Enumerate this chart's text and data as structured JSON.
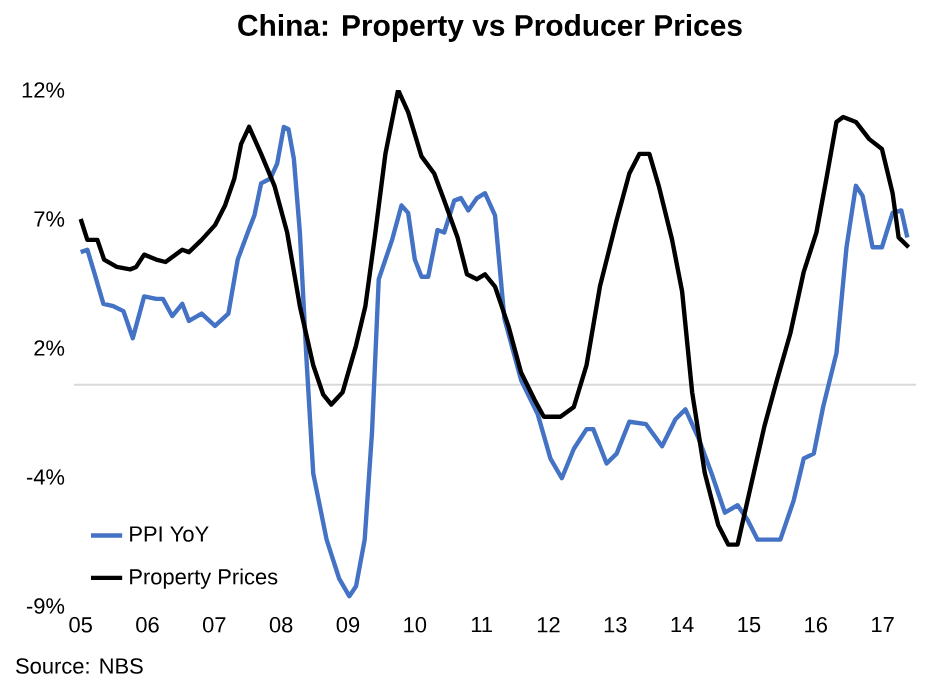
{
  "chart_data": {
    "type": "line",
    "title": "China: Property vs Producer Prices",
    "xlim": [
      2004.9,
      2017.5
    ],
    "ylim": [
      -9,
      12
    ],
    "xticks": [
      {
        "value": 2005,
        "label": "05"
      },
      {
        "value": 2006,
        "label": "06"
      },
      {
        "value": 2007,
        "label": "07"
      },
      {
        "value": 2008,
        "label": "08"
      },
      {
        "value": 2009,
        "label": "09"
      },
      {
        "value": 2010,
        "label": "10"
      },
      {
        "value": 2011,
        "label": "11"
      },
      {
        "value": 2012,
        "label": "12"
      },
      {
        "value": 2013,
        "label": "13"
      },
      {
        "value": 2014,
        "label": "14"
      },
      {
        "value": 2015,
        "label": "15"
      },
      {
        "value": 2016,
        "label": "16"
      },
      {
        "value": 2017,
        "label": "17"
      }
    ],
    "yticks": [
      {
        "value": 12,
        "label": "12%"
      },
      {
        "value": 6.75,
        "label": "7%"
      },
      {
        "value": 1.5,
        "label": "2%"
      },
      {
        "value": -3.75,
        "label": "-4%"
      },
      {
        "value": -9,
        "label": "-9%"
      }
    ],
    "grid": false,
    "legend": "bottom left",
    "ref_lines": [
      {
        "axis": "y",
        "value": 0,
        "color": "#d9d9d9"
      }
    ],
    "annotations": [
      "Source: NBS"
    ],
    "series": [
      {
        "name": "PPI YoY",
        "color": "#4472c4",
        "x": [
          2005.0,
          2005.1,
          2005.2,
          2005.34,
          2005.49,
          2005.64,
          2005.78,
          2005.95,
          2006.13,
          2006.23,
          2006.37,
          2006.52,
          2006.62,
          2006.81,
          2007.01,
          2007.21,
          2007.35,
          2007.5,
          2007.6,
          2007.7,
          2007.84,
          2007.94,
          2008.04,
          2008.11,
          2008.19,
          2008.28,
          2008.38,
          2008.48,
          2008.68,
          2008.87,
          2009.02,
          2009.12,
          2009.25,
          2009.36,
          2009.46,
          2009.66,
          2009.8,
          2009.9,
          2010.0,
          2010.1,
          2010.2,
          2010.34,
          2010.44,
          2010.59,
          2010.69,
          2010.8,
          2010.93,
          2011.05,
          2011.2,
          2011.34,
          2011.59,
          2011.84,
          2012.03,
          2012.2,
          2012.38,
          2012.57,
          2012.67,
          2012.87,
          2013.02,
          2013.21,
          2013.46,
          2013.7,
          2013.9,
          2014.05,
          2014.25,
          2014.44,
          2014.64,
          2014.83,
          2014.98,
          2015.13,
          2015.47,
          2015.67,
          2015.82,
          2015.97,
          2016.11,
          2016.31,
          2016.46,
          2016.6,
          2016.7,
          2016.85,
          2016.99,
          2017.15,
          2017.28,
          2017.37
        ],
        "values": [
          5.4,
          5.5,
          4.6,
          3.3,
          3.2,
          3.0,
          1.9,
          3.6,
          3.5,
          3.5,
          2.8,
          3.3,
          2.6,
          2.9,
          2.4,
          2.9,
          5.1,
          6.2,
          6.9,
          8.2,
          8.4,
          9.0,
          10.5,
          10.4,
          9.2,
          6.2,
          1.0,
          -3.6,
          -6.3,
          -7.9,
          -8.6,
          -8.2,
          -6.3,
          -1.9,
          4.3,
          5.9,
          7.3,
          7.0,
          5.1,
          4.4,
          4.4,
          6.3,
          6.2,
          7.5,
          7.6,
          7.1,
          7.6,
          7.8,
          6.9,
          2.7,
          0.2,
          -1.2,
          -3.0,
          -3.8,
          -2.6,
          -1.8,
          -1.8,
          -3.2,
          -2.8,
          -1.5,
          -1.6,
          -2.5,
          -1.4,
          -1.0,
          -2.2,
          -3.6,
          -5.2,
          -4.9,
          -5.5,
          -6.3,
          -6.3,
          -4.7,
          -3.0,
          -2.8,
          -0.9,
          1.3,
          5.6,
          8.1,
          7.7,
          5.6,
          5.6,
          7.0,
          7.1,
          6.0
        ]
      },
      {
        "name": "Property Prices",
        "color": "#000000",
        "x": [
          2005.0,
          2005.1,
          2005.25,
          2005.35,
          2005.54,
          2005.74,
          2005.83,
          2005.95,
          2006.13,
          2006.27,
          2006.52,
          2006.62,
          2006.81,
          2007.01,
          2007.16,
          2007.3,
          2007.4,
          2007.52,
          2007.7,
          2007.9,
          2008.09,
          2008.28,
          2008.48,
          2008.63,
          2008.75,
          2008.92,
          2009.12,
          2009.26,
          2009.41,
          2009.56,
          2009.75,
          2009.9,
          2010.1,
          2010.29,
          2010.44,
          2010.64,
          2010.78,
          2010.93,
          2011.05,
          2011.2,
          2011.4,
          2011.59,
          2011.79,
          2011.93,
          2012.18,
          2012.38,
          2012.57,
          2012.77,
          2013.02,
          2013.21,
          2013.36,
          2013.51,
          2013.65,
          2013.85,
          2014.0,
          2014.15,
          2014.34,
          2014.54,
          2014.69,
          2014.83,
          2015.03,
          2015.23,
          2015.42,
          2015.62,
          2015.82,
          2016.01,
          2016.16,
          2016.31,
          2016.41,
          2016.6,
          2016.8,
          2016.99,
          2017.15,
          2017.24,
          2017.39
        ],
        "values": [
          6.75,
          5.9,
          5.9,
          5.1,
          4.8,
          4.7,
          4.8,
          5.3,
          5.1,
          5.0,
          5.5,
          5.4,
          5.9,
          6.5,
          7.3,
          8.4,
          9.8,
          10.5,
          9.4,
          8.1,
          6.2,
          3.2,
          0.8,
          -0.4,
          -0.8,
          -0.3,
          1.6,
          3.2,
          6.2,
          9.4,
          12.0,
          11.1,
          9.3,
          8.6,
          7.5,
          6.0,
          4.5,
          4.3,
          4.5,
          4.0,
          2.4,
          0.5,
          -0.6,
          -1.3,
          -1.3,
          -0.9,
          0.8,
          4.0,
          6.7,
          8.6,
          9.4,
          9.4,
          8.1,
          5.9,
          3.8,
          -0.3,
          -3.6,
          -5.7,
          -6.5,
          -6.5,
          -4.1,
          -1.7,
          0.2,
          2.1,
          4.6,
          6.2,
          8.4,
          10.7,
          10.9,
          10.7,
          10.0,
          9.6,
          7.8,
          6.0,
          5.6
        ]
      }
    ]
  }
}
